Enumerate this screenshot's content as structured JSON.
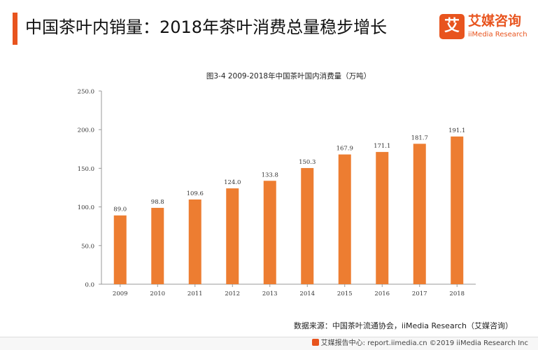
{
  "header": {
    "title": "中国茶叶内销量：2018年茶叶消费总量稳步增长"
  },
  "brand": {
    "badge_char": "艾",
    "name_cn": "艾媒咨询",
    "name_en": "iiMedia Research",
    "color": "#e8541e"
  },
  "chart_data": {
    "type": "bar",
    "title": "图3-4 2009-2018年中国茶叶国内消费量（万吨）",
    "categories": [
      "2009",
      "2010",
      "2011",
      "2012",
      "2013",
      "2014",
      "2015",
      "2016",
      "2017",
      "2018"
    ],
    "values": [
      89.0,
      98.8,
      109.6,
      124.0,
      133.8,
      150.3,
      167.9,
      171.1,
      181.7,
      191.1
    ],
    "value_labels": [
      "89.0",
      "98.8",
      "109.6",
      "124.0",
      "133.8",
      "150.3",
      "167.9",
      "171.1",
      "181.7",
      "191.1"
    ],
    "y_ticks": [
      0,
      50,
      100,
      150,
      200,
      250
    ],
    "y_tick_labels": [
      "0.0",
      "50.0",
      "100.0",
      "150.0",
      "200.0",
      "250.0"
    ],
    "ylim": [
      0,
      250
    ],
    "grid": false,
    "bar_color": "#ed7d31"
  },
  "source": {
    "text": "数据来源：中国茶叶流通协会，iiMedia Research（艾媒咨询）"
  },
  "footer": {
    "text": "艾媒报告中心: report.iimedia.cn  ©2019  iiMedia Research  Inc"
  }
}
